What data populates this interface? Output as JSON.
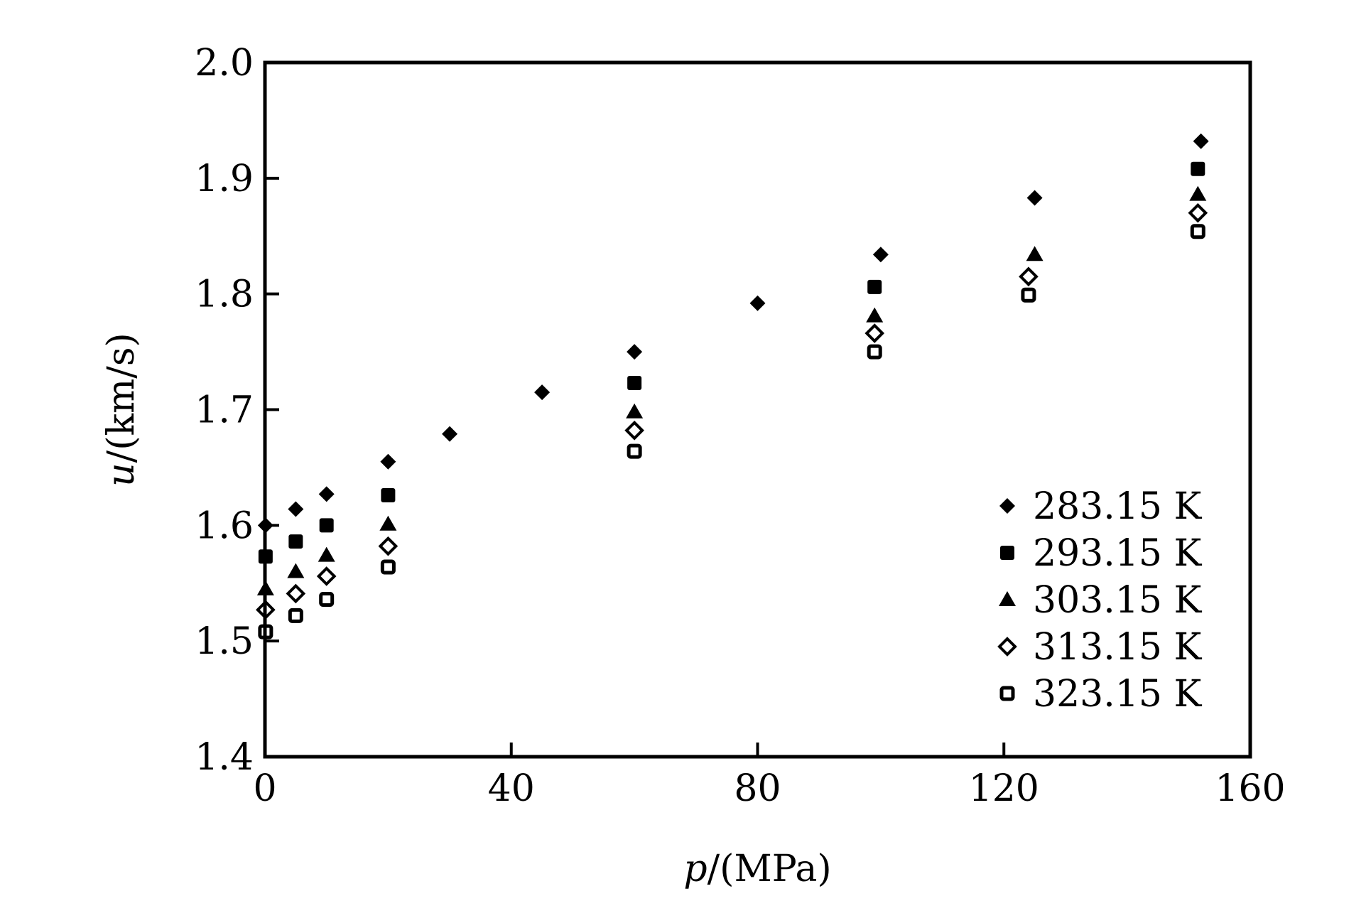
{
  "chart_data": {
    "type": "scatter",
    "title": "",
    "xlabel": {
      "italic": "p",
      "rest": "/(MPa)"
    },
    "ylabel": {
      "italic": "u",
      "rest": "/(km/s)"
    },
    "xlim": [
      0,
      160
    ],
    "ylim": [
      1.4,
      2.0
    ],
    "xticks": [
      0,
      40,
      80,
      120,
      160
    ],
    "xtick_labels": [
      "0",
      "40",
      "80",
      "120",
      "160"
    ],
    "yticks": [
      1.4,
      1.5,
      1.6,
      1.7,
      1.8,
      1.9,
      2.0
    ],
    "ytick_labels": [
      "1.4",
      "1.5",
      "1.6",
      "1.7",
      "1.8",
      "1.9",
      "2.0"
    ],
    "grid": false,
    "legend_position": "bottom-right",
    "series": [
      {
        "name": "283.15 K",
        "marker": "diamond-filled",
        "x": [
          0.1,
          5,
          10,
          20,
          30,
          45,
          60,
          80,
          100,
          125,
          152
        ],
        "y": [
          1.6,
          1.614,
          1.627,
          1.655,
          1.679,
          1.715,
          1.75,
          1.792,
          1.834,
          1.883,
          1.932
        ]
      },
      {
        "name": "293.15 K",
        "marker": "square-filled",
        "x": [
          0.1,
          5,
          10,
          20,
          60,
          99,
          151.5
        ],
        "y": [
          1.573,
          1.586,
          1.6,
          1.626,
          1.723,
          1.806,
          1.908
        ]
      },
      {
        "name": "303.15 K",
        "marker": "triangle-filled",
        "x": [
          0.1,
          5,
          10,
          20,
          60,
          99,
          125,
          151.5
        ],
        "y": [
          1.545,
          1.56,
          1.574,
          1.601,
          1.698,
          1.781,
          1.834,
          1.886
        ]
      },
      {
        "name": "313.15 K",
        "marker": "diamond-open",
        "x": [
          0.1,
          5,
          10,
          20,
          60,
          99,
          124,
          151.5
        ],
        "y": [
          1.527,
          1.541,
          1.556,
          1.582,
          1.682,
          1.766,
          1.815,
          1.87
        ]
      },
      {
        "name": "323.15 K",
        "marker": "square-open",
        "x": [
          0.1,
          5,
          10,
          20,
          60,
          99,
          124,
          151.5
        ],
        "y": [
          1.508,
          1.522,
          1.536,
          1.564,
          1.664,
          1.75,
          1.799,
          1.854
        ]
      }
    ]
  }
}
